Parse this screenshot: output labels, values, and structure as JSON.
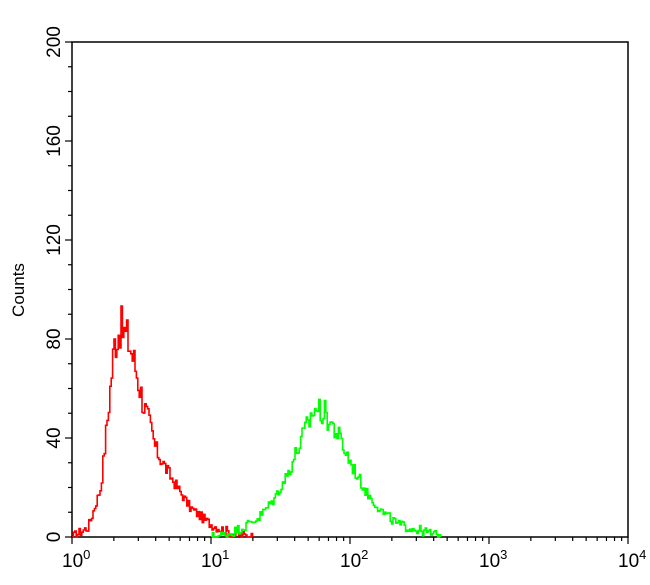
{
  "chart_data": {
    "type": "histogram",
    "title": "",
    "xlabel": "",
    "ylabel": "Counts",
    "x_scale": "log",
    "xlim": [
      1,
      10000
    ],
    "ylim": [
      0,
      200
    ],
    "grid": false,
    "legend": "none",
    "x_ticks": [
      {
        "base": "10",
        "exp": "0"
      },
      {
        "base": "10",
        "exp": "1"
      },
      {
        "base": "10",
        "exp": "2"
      },
      {
        "base": "10",
        "exp": "3"
      },
      {
        "base": "10",
        "exp": "4"
      }
    ],
    "y_ticks": [
      "0",
      "40",
      "80",
      "120",
      "160",
      "200"
    ],
    "y_tick_values": [
      0,
      40,
      80,
      120,
      160,
      200
    ],
    "series": [
      {
        "color": "#ff0000",
        "x": [
          1.0,
          1.3,
          1.6,
          1.8,
          2.0,
          2.2,
          2.5,
          2.8,
          3.2,
          3.6,
          4.0,
          5.0,
          6.0,
          7.0,
          8.5,
          10.0,
          12.0,
          15.0,
          20.0
        ],
        "y": [
          0,
          4,
          20,
          50,
          78,
          85,
          80,
          70,
          55,
          45,
          35,
          25,
          18,
          12,
          8,
          5,
          3,
          1,
          0
        ]
      },
      {
        "color": "#00ff00",
        "x": [
          10.0,
          13.0,
          17.0,
          22.0,
          28.0,
          35.0,
          45.0,
          55.0,
          65.0,
          80.0,
          100.0,
          130.0,
          170.0,
          220.0,
          300.0,
          400.0,
          450.0
        ],
        "y": [
          0,
          1,
          4,
          8,
          15,
          25,
          40,
          52,
          50,
          42,
          30,
          18,
          10,
          5,
          3,
          1,
          0
        ]
      }
    ]
  }
}
